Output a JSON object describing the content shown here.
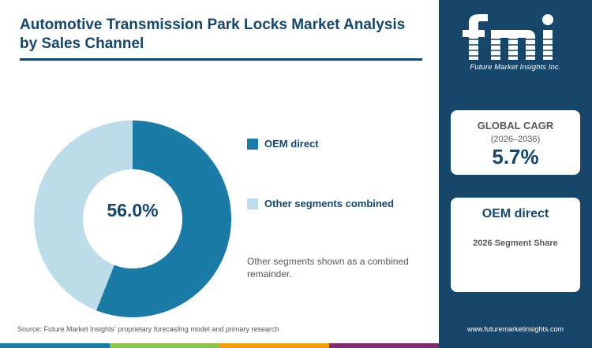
{
  "title": "Automotive Transmission Park Locks Market Analysis by Sales Channel",
  "chart_data": {
    "type": "pie",
    "categories": [
      "OEM direct",
      "Other segments combined"
    ],
    "values": [
      56.0,
      44.0
    ],
    "colors": [
      "#1a7ba6",
      "#bcdcea"
    ],
    "center_label": "56.0%",
    "legend_position": "right"
  },
  "note": "Other segments shown as a combined remainder.",
  "source": "Source: Future Market Insights' proprietary forecasting model and primary research",
  "sidebar": {
    "logo_text": "fmi",
    "logo_subtitle": "Future Market Insights Inc.",
    "cagr": {
      "title": "GLOBAL CAGR",
      "period": "(2026–2036)",
      "value": "5.7%"
    },
    "segment": {
      "title": "OEM direct",
      "subtitle": "2026 Segment Share"
    },
    "url": "www.futuremarketinsights.com"
  },
  "colors": {
    "navy": "#16476b",
    "bottom_bar": [
      "#1a7ba6",
      "#8bc34a",
      "#f39c12",
      "#7b2d6e"
    ]
  }
}
